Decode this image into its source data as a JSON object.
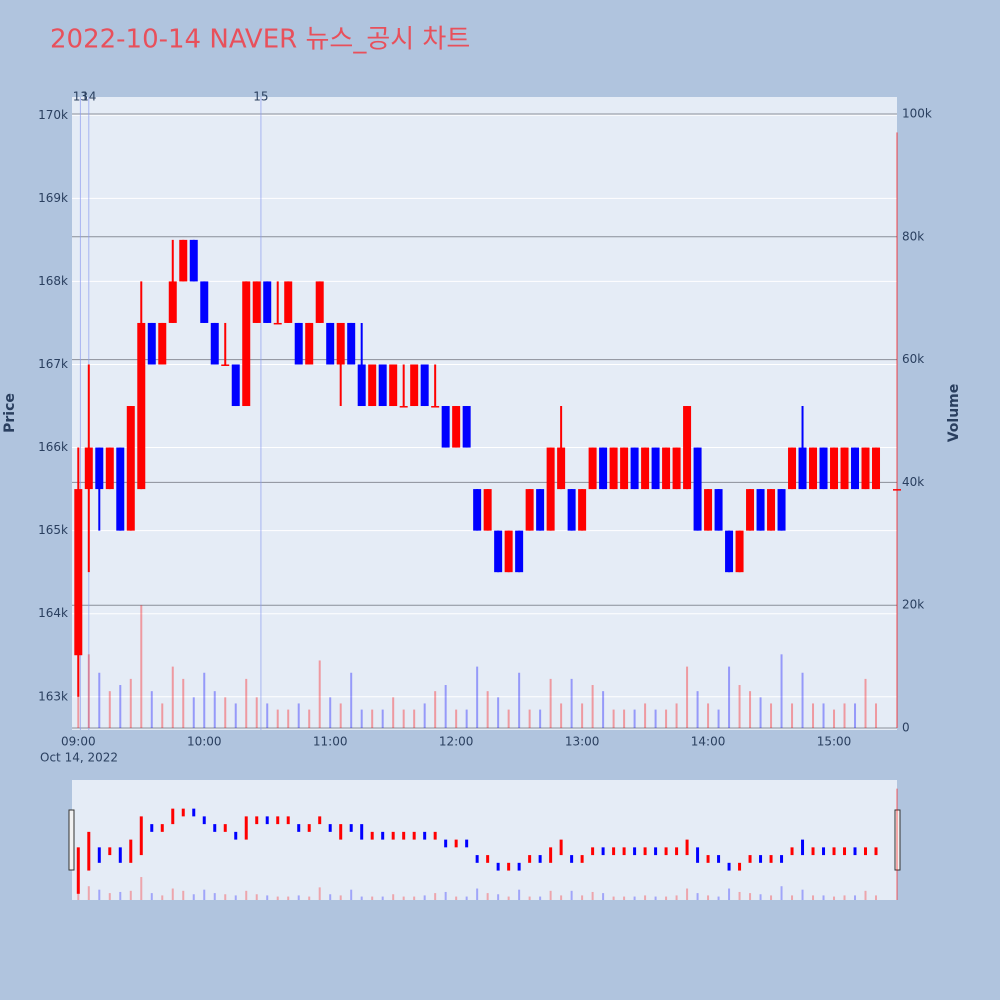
{
  "chart_data": {
    "type": "candlestick",
    "title": "2022-10-14 NAVER 뉴스_공시 차트",
    "y_axis_label": "Price",
    "y2_axis_label": "Volume",
    "x_date_label": "Oct 14, 2022",
    "increasing_color": "#ff0000",
    "decreasing_color": "#0000ff",
    "xlim": [
      "08:57",
      "15:30"
    ],
    "xticks": [
      "09:00",
      "10:00",
      "11:00",
      "12:00",
      "13:00",
      "14:00",
      "15:00"
    ],
    "ylim": [
      162600,
      170220
    ],
    "yticks": [
      {
        "value": 163000,
        "label": "163k"
      },
      {
        "value": 164000,
        "label": "164k"
      },
      {
        "value": 165000,
        "label": "165k"
      },
      {
        "value": 166000,
        "label": "166k"
      },
      {
        "value": 167000,
        "label": "167k"
      },
      {
        "value": 168000,
        "label": "168k"
      },
      {
        "value": 169000,
        "label": "169k"
      },
      {
        "value": 170000,
        "label": "170k"
      }
    ],
    "y2lim": [
      0,
      102770
    ],
    "y2ticks": [
      0,
      {
        "value": 20000,
        "label": "20k"
      },
      {
        "value": 40000,
        "label": "40k"
      },
      {
        "value": 60000,
        "label": "60k"
      },
      {
        "value": 80000,
        "label": "80k"
      },
      {
        "value": 100000,
        "label": "100k"
      }
    ],
    "events": [
      {
        "x": "09:01",
        "label": "13"
      },
      {
        "x": "09:05",
        "label": "14"
      },
      {
        "x": "10:27",
        "label": "15"
      }
    ],
    "x": [
      "09:00",
      "09:05",
      "09:10",
      "09:15",
      "09:20",
      "09:25",
      "09:30",
      "09:35",
      "09:40",
      "09:45",
      "09:50",
      "09:55",
      "10:00",
      "10:05",
      "10:10",
      "10:15",
      "10:20",
      "10:25",
      "10:30",
      "10:35",
      "10:40",
      "10:45",
      "10:50",
      "10:55",
      "11:00",
      "11:05",
      "11:10",
      "11:15",
      "11:20",
      "11:25",
      "11:30",
      "11:35",
      "11:40",
      "11:45",
      "11:50",
      "11:55",
      "12:00",
      "12:05",
      "12:10",
      "12:15",
      "12:20",
      "12:25",
      "12:30",
      "12:35",
      "12:40",
      "12:45",
      "12:50",
      "12:55",
      "13:00",
      "13:05",
      "13:10",
      "13:15",
      "13:20",
      "13:25",
      "13:30",
      "13:35",
      "13:40",
      "13:45",
      "13:50",
      "13:55",
      "14:00",
      "14:05",
      "14:10",
      "14:15",
      "14:20",
      "14:25",
      "14:30",
      "14:35",
      "14:40",
      "14:45",
      "14:50",
      "14:55",
      "15:00",
      "15:05",
      "15:10",
      "15:15",
      "15:20",
      "15:30"
    ],
    "open": [
      163500,
      165500,
      166000,
      165500,
      166000,
      165000,
      165500,
      167500,
      167000,
      167500,
      168000,
      168500,
      168000,
      167500,
      167000,
      167000,
      166500,
      167500,
      168000,
      167500,
      167500,
      167500,
      167000,
      167500,
      167500,
      167000,
      167500,
      167000,
      166500,
      167000,
      166500,
      166500,
      166500,
      167000,
      166500,
      166500,
      166000,
      166500,
      165500,
      165000,
      165000,
      164500,
      165000,
      165000,
      165500,
      165000,
      165500,
      165500,
      165000,
      165500,
      166000,
      165500,
      165500,
      166000,
      165500,
      166000,
      165500,
      165500,
      165500,
      166000,
      165000,
      165500,
      165000,
      164500,
      165000,
      165500,
      165000,
      165500,
      165500,
      166000,
      165500,
      166000,
      165500,
      165500,
      166000,
      165500,
      165500,
      165500
    ],
    "high": [
      166000,
      167000,
      166000,
      166000,
      166000,
      166500,
      168000,
      167500,
      167500,
      168500,
      168500,
      168500,
      168000,
      167500,
      167500,
      167000,
      168000,
      168000,
      168000,
      168000,
      168000,
      167500,
      167500,
      168000,
      167500,
      167500,
      167500,
      167500,
      167000,
      167000,
      167000,
      167000,
      167000,
      167000,
      167000,
      166500,
      166500,
      166500,
      165500,
      165500,
      165000,
      165000,
      165000,
      165500,
      165500,
      166000,
      166500,
      165500,
      165500,
      166000,
      166000,
      166000,
      166000,
      166000,
      166000,
      166000,
      166000,
      166000,
      166500,
      166000,
      165500,
      165500,
      165000,
      165000,
      165500,
      165500,
      165500,
      165500,
      166000,
      166500,
      166000,
      166000,
      166000,
      166000,
      166000,
      166000,
      166000,
      165500
    ],
    "low": [
      163000,
      164500,
      165000,
      165500,
      165000,
      165000,
      165500,
      167000,
      167000,
      167500,
      168000,
      168000,
      167500,
      167000,
      167000,
      166500,
      166500,
      167500,
      167500,
      167500,
      167500,
      167000,
      167000,
      167500,
      167000,
      166500,
      167000,
      166500,
      166500,
      166500,
      166500,
      166500,
      166500,
      166500,
      166500,
      166000,
      166000,
      166000,
      165000,
      165000,
      164500,
      164500,
      164500,
      165000,
      165000,
      165000,
      165500,
      165000,
      165000,
      165500,
      165500,
      165500,
      165500,
      165500,
      165500,
      165500,
      165500,
      165500,
      165500,
      165000,
      165000,
      165000,
      164500,
      164500,
      165000,
      165000,
      165000,
      165000,
      165500,
      165500,
      165500,
      165500,
      165500,
      165500,
      165500,
      165500,
      165500,
      165500
    ],
    "close": [
      165500,
      166000,
      165500,
      166000,
      165000,
      166500,
      167500,
      167000,
      167500,
      168000,
      168500,
      168000,
      167500,
      167000,
      167000,
      166500,
      168000,
      168000,
      167500,
      167500,
      168000,
      167000,
      167500,
      168000,
      167000,
      167500,
      167000,
      166500,
      167000,
      166500,
      167000,
      166500,
      167000,
      166500,
      166500,
      166000,
      166500,
      166000,
      165000,
      165500,
      164500,
      165000,
      164500,
      165500,
      165000,
      166000,
      166000,
      165000,
      165500,
      166000,
      165500,
      166000,
      166000,
      165500,
      166000,
      165500,
      166000,
      166000,
      166500,
      165000,
      165500,
      165000,
      164500,
      165000,
      165500,
      165000,
      165500,
      165000,
      166000,
      165500,
      166000,
      165500,
      166000,
      166000,
      165500,
      166000,
      166000,
      165500
    ],
    "volume": [
      25000,
      12000,
      9000,
      6000,
      7000,
      8000,
      20000,
      6000,
      4000,
      10000,
      8000,
      5000,
      9000,
      6000,
      5000,
      4000,
      8000,
      5000,
      4000,
      3000,
      3000,
      4000,
      3000,
      11000,
      5000,
      4000,
      9000,
      3000,
      3000,
      3000,
      5000,
      3000,
      3000,
      4000,
      6000,
      7000,
      3000,
      3000,
      10000,
      6000,
      5000,
      3000,
      9000,
      3000,
      3000,
      8000,
      4000,
      8000,
      4000,
      7000,
      6000,
      3000,
      3000,
      3000,
      4000,
      3000,
      3000,
      4000,
      10000,
      6000,
      4000,
      3000,
      10000,
      7000,
      6000,
      5000,
      4000,
      12000,
      4000,
      9000,
      4000,
      4000,
      3000,
      4000,
      4000,
      8000,
      4000,
      97000
    ]
  }
}
